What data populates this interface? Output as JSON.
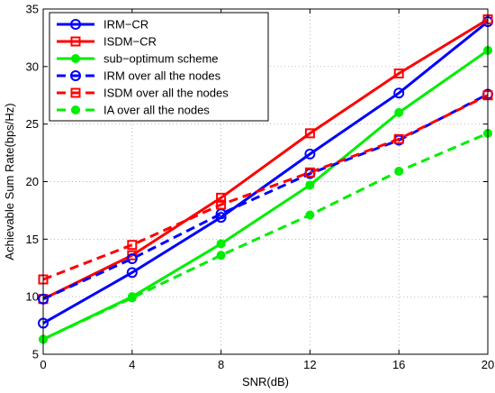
{
  "chart_data": {
    "type": "line",
    "title": "",
    "xlabel": "SNR(dB)",
    "ylabel": "Achievable Sum Rate(bps/Hz)",
    "xlim": [
      0,
      20
    ],
    "ylim": [
      5,
      35
    ],
    "xticks": [
      0,
      4,
      8,
      12,
      16,
      20
    ],
    "yticks": [
      5,
      10,
      15,
      20,
      25,
      30,
      35
    ],
    "grid": true,
    "legend_position": "top-left",
    "x": [
      0,
      4,
      8,
      12,
      16,
      20
    ],
    "series": [
      {
        "name": "IRM−CR",
        "values": [
          7.7,
          12.1,
          16.9,
          22.4,
          27.7,
          33.9
        ],
        "color": "#0000ff",
        "line": "solid",
        "marker": "circle"
      },
      {
        "name": "ISDM−CR",
        "values": [
          9.8,
          13.6,
          18.6,
          24.2,
          29.4,
          34.1
        ],
        "color": "#ff0000",
        "line": "solid",
        "marker": "square"
      },
      {
        "name": "sub−optimum scheme",
        "values": [
          6.3,
          10.0,
          14.6,
          19.7,
          26.0,
          31.4
        ],
        "color": "#00ee00",
        "line": "solid",
        "marker": "dot"
      },
      {
        "name": "IRM over all the nodes",
        "values": [
          9.8,
          13.3,
          17.2,
          20.7,
          23.6,
          27.6
        ],
        "color": "#0000ff",
        "line": "dashed",
        "marker": "circle"
      },
      {
        "name": "ISDM over all the nodes",
        "values": [
          11.5,
          14.5,
          18.0,
          20.8,
          23.7,
          27.5
        ],
        "color": "#ff0000",
        "line": "dashed",
        "marker": "square"
      },
      {
        "name": "IA over all the nodes",
        "values": [
          6.3,
          9.9,
          13.6,
          17.1,
          20.9,
          24.2
        ],
        "color": "#00ee00",
        "line": "dashed",
        "marker": "dot"
      }
    ]
  }
}
